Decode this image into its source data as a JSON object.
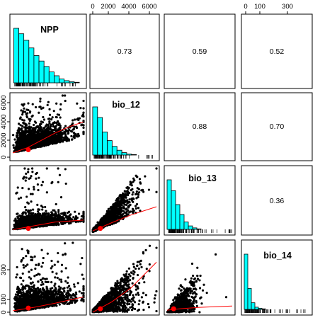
{
  "chart_data": {
    "type": "scatter",
    "variables": [
      "NPP",
      "bio_12",
      "bio_13",
      "bio_14"
    ],
    "axes": {
      "bio_12": {
        "ticks": [
          0,
          2000,
          4000,
          6000
        ],
        "range": [
          0,
          7100
        ]
      },
      "bio_14": {
        "ticks": [
          0,
          100,
          300
        ],
        "range": [
          0,
          390
        ]
      }
    },
    "correlations": [
      {
        "row": "NPP",
        "col": "bio_12",
        "label": "0.73",
        "value": 0.73
      },
      {
        "row": "NPP",
        "col": "bio_13",
        "label": "0.59",
        "value": 0.59
      },
      {
        "row": "NPP",
        "col": "bio_14",
        "label": "0.52",
        "value": 0.52
      },
      {
        "row": "bio_12",
        "col": "bio_13",
        "label": "0.88",
        "value": 0.88
      },
      {
        "row": "bio_12",
        "col": "bio_14",
        "label": "0.70",
        "value": 0.7
      },
      {
        "row": "bio_13",
        "col": "bio_14",
        "label": "0.36",
        "value": 0.36
      }
    ],
    "histograms": {
      "NPP": [
        1.0,
        0.9,
        0.78,
        0.64,
        0.5,
        0.4,
        0.3,
        0.2,
        0.13,
        0.07,
        0.04,
        0.02,
        0.01
      ],
      "bio_12": [
        1.0,
        0.78,
        0.48,
        0.3,
        0.18,
        0.1,
        0.05,
        0.02,
        0.01
      ],
      "bio_13": [
        1.0,
        0.78,
        0.5,
        0.3,
        0.15,
        0.07,
        0.03,
        0.01
      ],
      "bio_14": [
        1.0,
        0.38,
        0.12,
        0.04,
        0.02,
        0.01
      ]
    },
    "panel_type": {
      "diagonal": "histogram with rug",
      "upper": "correlation coefficient",
      "lower": "scatter with red smoother and red mean point"
    },
    "colors": {
      "histogram_fill": "#00ffff",
      "points": "#000000",
      "smoother": "#ff0000",
      "frame": "#000000"
    },
    "grid": false
  }
}
